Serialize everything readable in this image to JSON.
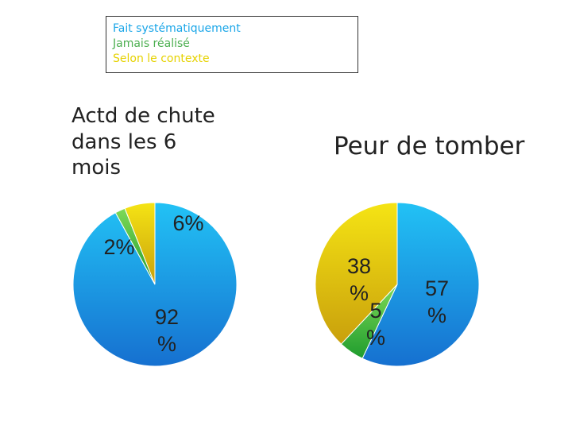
{
  "legend": {
    "items": [
      {
        "label": "Fait systématiquement",
        "color": "#1aa6e8"
      },
      {
        "label": "Jamais réalisé",
        "color": "#4caf50"
      },
      {
        "label": "Selon le contexte",
        "color": "#e6d200"
      }
    ]
  },
  "chart_data": [
    {
      "type": "pie",
      "title": "Actd de chute dans les 6 mois",
      "slices": [
        {
          "category": "Fait systématiquement",
          "value": 92,
          "label": "92 %"
        },
        {
          "category": "Jamais réalisé",
          "value": 2,
          "label": "2%"
        },
        {
          "category": "Selon le contexte",
          "value": 6,
          "label": "6%"
        }
      ]
    },
    {
      "type": "pie",
      "title": "Peur de tomber",
      "slices": [
        {
          "category": "Fait systématiquement",
          "value": 57,
          "label": "57 %"
        },
        {
          "category": "Jamais réalisé",
          "value": 5,
          "label": "5 %"
        },
        {
          "category": "Selon le contexte",
          "value": 38,
          "label": "38 %"
        }
      ]
    }
  ]
}
